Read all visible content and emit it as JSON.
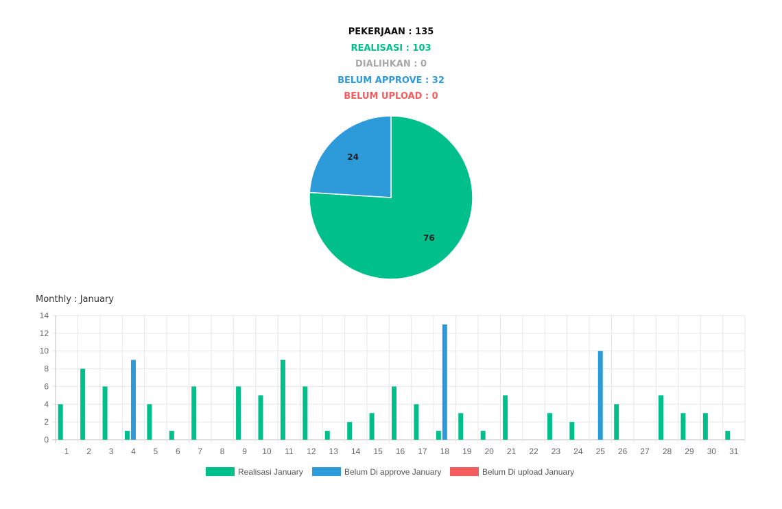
{
  "summary": {
    "pekerjaan": "PEKERJAAN : 135",
    "realisasi": "REALISASI : 103",
    "dialihkan": "DIALIHKAN : 0",
    "belum_approve": "BELUM APPROVE : 32",
    "belum_upload": "BELUM UPLOAD : 0"
  },
  "colors": {
    "pekerjaan": "#111111",
    "realisasi": "#00bf8a",
    "dialihkan": "#a8a8a8",
    "belum_approve": "#2d9ad9",
    "belum_upload": "#f45d5d"
  },
  "monthly_title": "Monthly : January",
  "chart_data": [
    {
      "type": "pie",
      "slices": [
        {
          "label": "76",
          "value": 76,
          "color": "#00bf8a"
        },
        {
          "label": "24",
          "value": 24,
          "color": "#2d9ad9"
        }
      ]
    },
    {
      "type": "bar",
      "categories": [
        "1",
        "2",
        "3",
        "4",
        "5",
        "6",
        "7",
        "8",
        "9",
        "10",
        "11",
        "12",
        "13",
        "14",
        "15",
        "16",
        "17",
        "18",
        "19",
        "20",
        "21",
        "22",
        "23",
        "24",
        "25",
        "26",
        "27",
        "28",
        "29",
        "30",
        "31"
      ],
      "series": [
        {
          "name": "Realisasi January",
          "color": "#00bf8a",
          "values": [
            4,
            8,
            6,
            1,
            4,
            1,
            6,
            0,
            6,
            5,
            9,
            6,
            1,
            2,
            3,
            6,
            4,
            1,
            3,
            1,
            5,
            0,
            3,
            2,
            0,
            4,
            0,
            5,
            3,
            3,
            1
          ]
        },
        {
          "name": "Belum Di approve January",
          "color": "#2d9ad9",
          "values": [
            0,
            0,
            0,
            9,
            0,
            0,
            0,
            0,
            0,
            0,
            0,
            0,
            0,
            0,
            0,
            0,
            0,
            13,
            0,
            0,
            0,
            0,
            0,
            0,
            10,
            0,
            0,
            0,
            0,
            0,
            0
          ]
        },
        {
          "name": "Belum Di upload January",
          "color": "#f45d5d",
          "values": [
            0,
            0,
            0,
            0,
            0,
            0,
            0,
            0,
            0,
            0,
            0,
            0,
            0,
            0,
            0,
            0,
            0,
            0,
            0,
            0,
            0,
            0,
            0,
            0,
            0,
            0,
            0,
            0,
            0,
            0,
            0
          ]
        }
      ],
      "ylim": [
        0,
        14
      ],
      "yticks": [
        0,
        2,
        4,
        6,
        8,
        10,
        12,
        14
      ],
      "grid": true,
      "legend": "bottom"
    }
  ]
}
